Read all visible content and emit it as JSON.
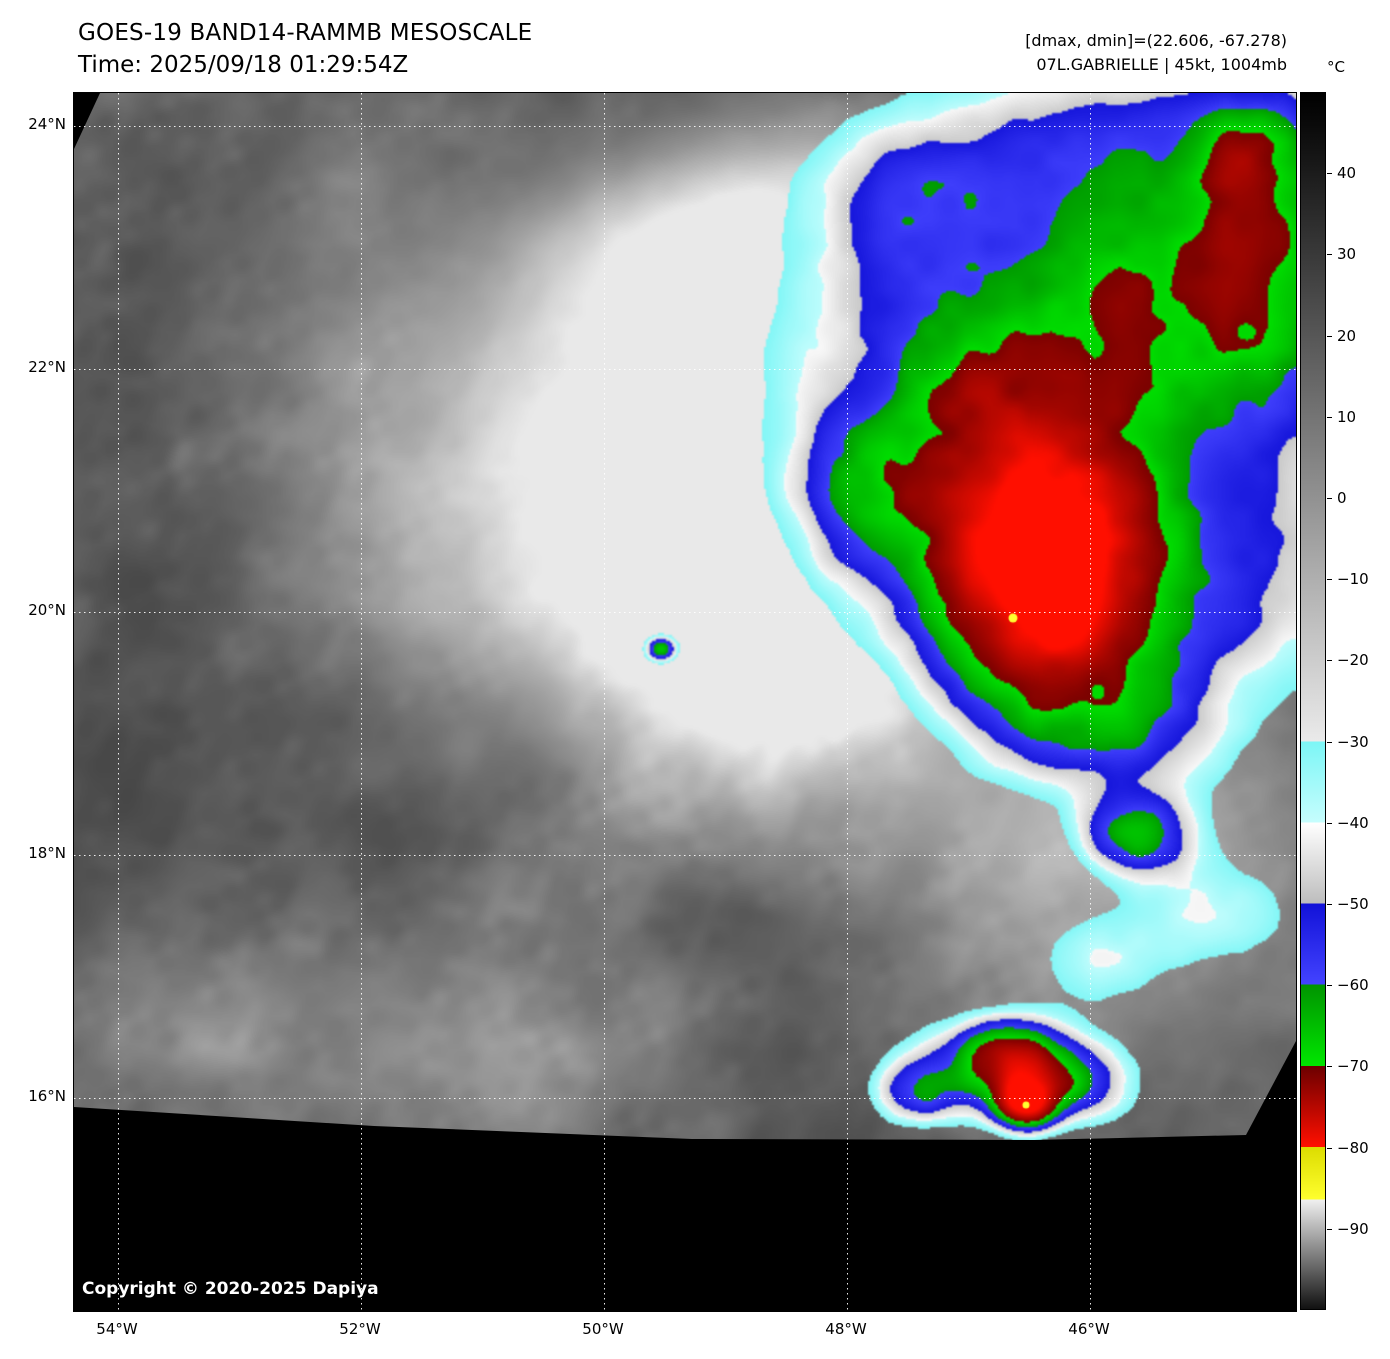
{
  "header": {
    "title": "GOES-19 BAND14-RAMMB MESOSCALE",
    "time_line": "Time: 2025/09/18 01:29:54Z",
    "dmax_dmin": "[dmax, dmin]=(22.606, -67.278)",
    "storm_line": "07L.GABRIELLE | 45kt, 1004mb"
  },
  "map": {
    "copyright": "Copyright © 2020-2025 Dapiya",
    "lat_ticks": [
      "24°N",
      "22°N",
      "20°N",
      "18°N",
      "16°N"
    ],
    "lon_ticks": [
      "54°W",
      "52°W",
      "50°W",
      "48°W",
      "46°W"
    ]
  },
  "colorbar": {
    "unit_label": "°C",
    "range_top_c": 50,
    "range_bottom_c": -100,
    "ticks": [
      {
        "label": "40",
        "value": 40
      },
      {
        "label": "30",
        "value": 30
      },
      {
        "label": "20",
        "value": 20
      },
      {
        "label": "10",
        "value": 10
      },
      {
        "label": "0",
        "value": 0
      },
      {
        "label": "−10",
        "value": -10
      },
      {
        "label": "−20",
        "value": -20
      },
      {
        "label": "−30",
        "value": -30
      },
      {
        "label": "−40",
        "value": -40
      },
      {
        "label": "−50",
        "value": -50
      },
      {
        "label": "−60",
        "value": -60
      },
      {
        "label": "−70",
        "value": -70
      },
      {
        "label": "−80",
        "value": -80
      },
      {
        "label": "−90",
        "value": -90
      }
    ],
    "stops": [
      {
        "t": 50,
        "color": "#000000"
      },
      {
        "t": 45,
        "color": "#0d0d0d"
      },
      {
        "t": -30,
        "color": "#eaeaea"
      },
      {
        "t": -30,
        "color": "#7cf6f6"
      },
      {
        "t": -40,
        "color": "#c6fdfd"
      },
      {
        "t": -40,
        "color": "#ffffff"
      },
      {
        "t": -50,
        "color": "#bdbdbd"
      },
      {
        "t": -50,
        "color": "#1212d8"
      },
      {
        "t": -60,
        "color": "#4343ff"
      },
      {
        "t": -60,
        "color": "#009400"
      },
      {
        "t": -70,
        "color": "#00e600"
      },
      {
        "t": -70,
        "color": "#6c0000"
      },
      {
        "t": -80,
        "color": "#ff0f00"
      },
      {
        "t": -80,
        "color": "#dcdc00"
      },
      {
        "t": -86.5,
        "color": "#ffff2e"
      },
      {
        "t": -86.5,
        "color": "#f0f0f0"
      },
      {
        "t": -100,
        "color": "#111111"
      }
    ]
  }
}
